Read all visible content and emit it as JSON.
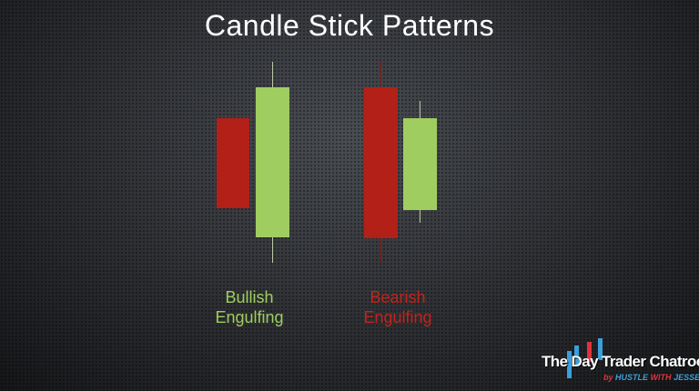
{
  "title": "Candle Stick Patterns",
  "colors": {
    "bull": "#a0cd60",
    "bear": "#b22018",
    "bull_wick": "#b8c8a0",
    "bear_wick": "#8a1a14"
  },
  "patterns": [
    {
      "label_line1": "Bullish",
      "label_line2": "Engulfing",
      "color": "#a0cd60"
    },
    {
      "label_line1": "Bearish",
      "label_line2": "Engulfing",
      "color": "#c0241c"
    }
  ],
  "logo": {
    "name": "The Day Trader Chatroom",
    "by": "by",
    "tagline_a": "HUSTLE",
    "tagline_b": "WITH",
    "tagline_c": "JESSEW"
  }
}
